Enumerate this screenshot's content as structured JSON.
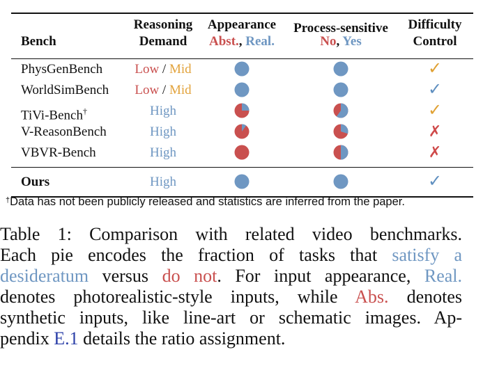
{
  "header": {
    "bench": "Bench",
    "reasoning_line1": "Reasoning",
    "reasoning_line2": "Demand",
    "appearance_line1": "Appearance",
    "appearance_abst": "Abst.",
    "appearance_sep": ", ",
    "appearance_real": "Real.",
    "process_line1": "Process-sensitive",
    "process_no": "No",
    "process_sep": ", ",
    "process_yes": "Yes",
    "difficulty_line1": "Difficulty",
    "difficulty_line2": "Control"
  },
  "colors": {
    "red": "#c9504f",
    "blue": "#6f97c2",
    "orange": "#e0a133",
    "link": "#2b3fa8"
  },
  "rows": [
    {
      "name": "PhysGenBench",
      "reason_a": "Low",
      "reason_sep": " / ",
      "reason_b": "Mid",
      "reason_style": "lowmid",
      "appearance_real_frac": 1.0,
      "process_yes_frac": 1.0,
      "difficulty": "check-orange"
    },
    {
      "name": "WorldSimBench",
      "reason_a": "Low",
      "reason_sep": " / ",
      "reason_b": "Mid",
      "reason_style": "lowmid",
      "appearance_real_frac": 1.0,
      "process_yes_frac": 1.0,
      "difficulty": "check-blue"
    },
    {
      "name": "TiVi-Bench",
      "name_sup": "†",
      "reason_a": "High",
      "reason_style": "high",
      "appearance_real_frac": 0.25,
      "process_yes_frac": 0.6,
      "difficulty": "check-orange"
    },
    {
      "name": "V-ReasonBench",
      "reason_a": "High",
      "reason_style": "high",
      "appearance_real_frac": 0.1,
      "process_yes_frac": 0.3,
      "difficulty": "cross"
    },
    {
      "name": "VBVR-Bench",
      "reason_a": "High",
      "reason_style": "high",
      "appearance_real_frac": 0.0,
      "process_yes_frac": 0.5,
      "difficulty": "cross"
    }
  ],
  "ours": {
    "name": "Ours",
    "reason_a": "High",
    "reason_style": "high",
    "appearance_real_frac": 1.0,
    "process_yes_frac": 1.0,
    "difficulty": "check-blue"
  },
  "marks": {
    "check": "✓",
    "cross": "✗"
  },
  "footnote": {
    "dagger": "†",
    "text": "Data has not been publicly released and statistics are inferred from the paper."
  },
  "caption": {
    "l1": "Table 1: Comparison with related video benchmarks.",
    "l2_a": "Each pie encodes the fraction of tasks that ",
    "l2_b": "satisfy a",
    "l3_a": "desideratum",
    "l3_b": " versus ",
    "l3_c": "do not",
    "l3_d": ". For input appearance, ",
    "l3_e": "Real.",
    "l4_a": "denotes photorealistic-style inputs, while ",
    "l4_b": "Abs.",
    "l4_c": " denotes",
    "l5": "synthetic inputs, like line-art or schematic images. Ap-",
    "l6_a": "pendix ",
    "l6_b": "E.1",
    "l6_c": " details the ratio assignment."
  }
}
